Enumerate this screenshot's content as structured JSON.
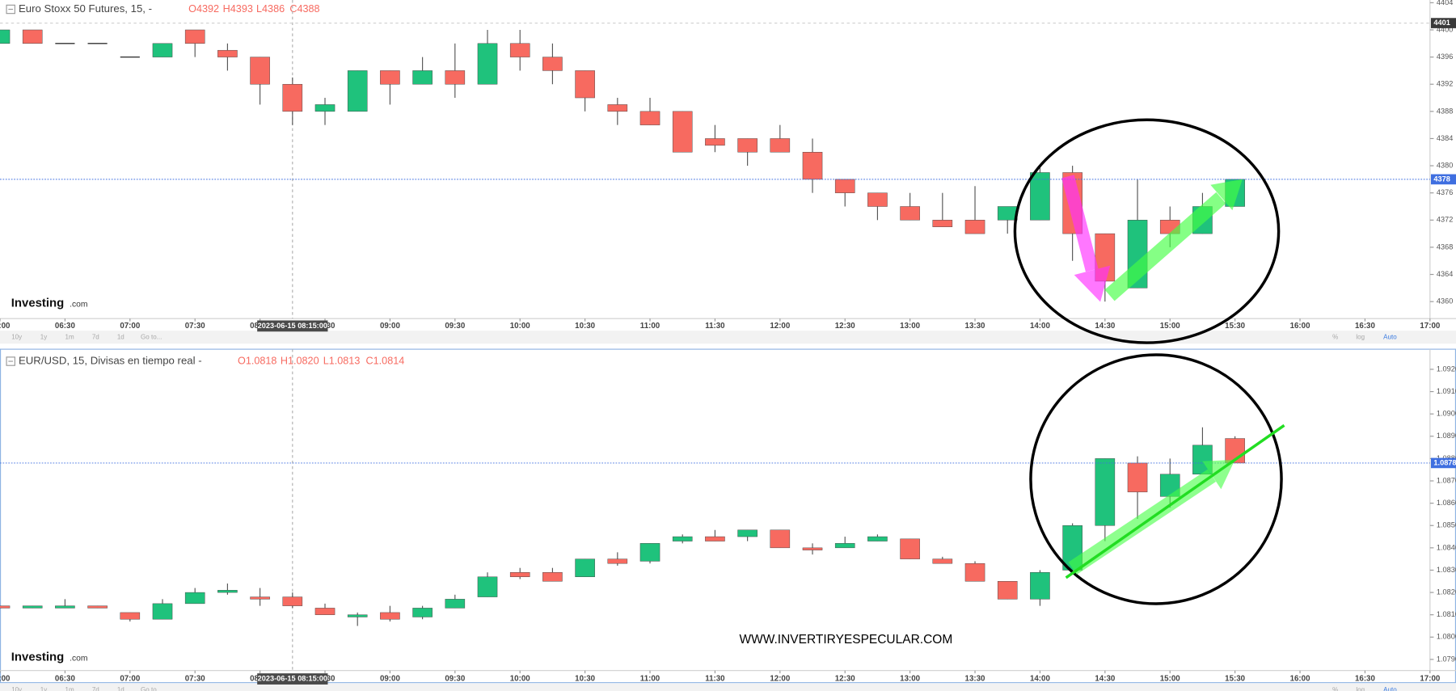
{
  "chart_data": [
    {
      "type": "candlestick",
      "title": "Euro Stoxx 50 Futures, 15, -",
      "ohlc_header": [
        "O4392",
        "H4393",
        "L4386",
        "C4388"
      ],
      "up_color": "#1fc27c",
      "down_color": "#f76a60",
      "categories": [
        "06:00",
        null,
        "06:30",
        null,
        "07:00",
        null,
        "07:30",
        null,
        "08:00",
        null,
        "08:30",
        null,
        "09:00",
        null,
        "09:30",
        null,
        "10:00",
        null,
        "10:30",
        null,
        "11:00",
        null,
        "11:30",
        null,
        "12:00",
        null,
        "12:30",
        null,
        "13:00",
        null,
        "13:30",
        null,
        "14:00",
        null,
        "14:30",
        null,
        "15:00",
        null,
        "15:30",
        null,
        "16:00",
        null,
        "16:30",
        null,
        "17:00"
      ],
      "open": [
        4398,
        4400,
        4398,
        4398,
        4396,
        4396,
        4400,
        4397,
        4396,
        4392,
        4388,
        4388,
        4394,
        4392,
        4394,
        4392,
        4398,
        4396,
        4394,
        4389,
        4388,
        4388,
        4384,
        4384,
        4384,
        4382,
        4378,
        4376,
        4374,
        4372,
        4372,
        4372,
        4372,
        4379,
        4370,
        4362,
        4372,
        4370,
        4374,
        null,
        null,
        null,
        null,
        null,
        null
      ],
      "high": [
        4400,
        4400,
        4398,
        4398,
        4396,
        4398,
        4400,
        4398,
        4396,
        4393,
        4390,
        4394,
        4394,
        4396,
        4398,
        4400,
        4400,
        4398,
        4394,
        4390,
        4390,
        4388,
        4386,
        4384,
        4386,
        4384,
        4378,
        4376,
        4376,
        4376,
        4377,
        4374,
        4380,
        4380,
        4370,
        4378,
        4374,
        4376,
        4378,
        null,
        null,
        null,
        null,
        null,
        null
      ],
      "low": [
        4398,
        4398,
        4398,
        4398,
        4396,
        4396,
        4396,
        4394,
        4389,
        4386,
        4386,
        4388,
        4389,
        4392,
        4390,
        4392,
        4394,
        4392,
        4388,
        4386,
        4386,
        4382,
        4382,
        4380,
        4382,
        4376,
        4374,
        4372,
        4372,
        4371,
        4370,
        4370,
        4372,
        4366,
        4360,
        4362,
        4368,
        4370,
        4374,
        null,
        null,
        null,
        null,
        null,
        null
      ],
      "close": [
        4400,
        4398,
        4398,
        4398,
        4396,
        4398,
        4398,
        4396,
        4392,
        4388,
        4389,
        4394,
        4392,
        4394,
        4392,
        4398,
        4396,
        4394,
        4390,
        4388,
        4386,
        4382,
        4383,
        4382,
        4382,
        4378,
        4376,
        4374,
        4372,
        4371,
        4370,
        4374,
        4379,
        4370,
        4363,
        4372,
        4370,
        4374,
        4378,
        null,
        null,
        null,
        null,
        null,
        null
      ],
      "ylim": [
        4357.5,
        4404.4
      ],
      "yticks": [
        4360,
        4364,
        4368,
        4372,
        4376,
        4380,
        4384,
        4388,
        4392,
        4396,
        4400,
        4404
      ],
      "last_price": 4378,
      "crosshair_price": 4401,
      "crosshair_time": "2023-06-15 08:15:00"
    },
    {
      "type": "candlestick",
      "title": "EUR/USD, 15, Divisas en tiempo real -",
      "ohlc_header": [
        "O1.0818",
        "H1.0820",
        "L1.0813",
        "C1.0814"
      ],
      "up_color": "#1fc27c",
      "down_color": "#f76a60",
      "categories": [
        "06:00",
        null,
        "06:30",
        null,
        "07:00",
        null,
        "07:30",
        null,
        "08:00",
        null,
        "08:30",
        null,
        "09:00",
        null,
        "09:30",
        null,
        "10:00",
        null,
        "10:30",
        null,
        "11:00",
        null,
        "11:30",
        null,
        "12:00",
        null,
        "12:30",
        null,
        "13:00",
        null,
        "13:30",
        null,
        "14:00",
        null,
        "14:30",
        null,
        "15:00",
        null,
        "15:30",
        null,
        "16:00",
        null,
        "16:30",
        null,
        "17:00"
      ],
      "open": [
        1.0814,
        1.0813,
        1.0813,
        1.0814,
        1.0811,
        1.0808,
        1.0815,
        1.082,
        1.0818,
        1.0818,
        1.0813,
        1.0809,
        1.0811,
        1.0809,
        1.0813,
        1.0818,
        1.0829,
        1.0829,
        1.0827,
        1.0835,
        1.0834,
        1.0843,
        1.0845,
        1.0845,
        1.0848,
        1.084,
        1.084,
        1.0843,
        1.0844,
        1.0835,
        1.0833,
        1.0825,
        1.0817,
        1.083,
        1.085,
        1.0878,
        1.0863,
        1.0873,
        1.0889,
        null,
        null,
        null,
        null,
        null,
        null
      ],
      "high": [
        1.0814,
        1.0814,
        1.0817,
        1.0814,
        1.0811,
        1.0817,
        1.0822,
        1.0824,
        1.0822,
        1.082,
        1.0815,
        1.0811,
        1.0814,
        1.0814,
        1.0819,
        1.0829,
        1.0831,
        1.0831,
        1.0835,
        1.0838,
        1.0842,
        1.0846,
        1.0848,
        1.0848,
        1.0848,
        1.0842,
        1.0845,
        1.0846,
        1.0844,
        1.0836,
        1.0834,
        1.0825,
        1.083,
        1.0851,
        1.088,
        1.0881,
        1.088,
        1.0894,
        1.089,
        null,
        null,
        null,
        null,
        null,
        null
      ],
      "low": [
        1.0813,
        1.0813,
        1.0813,
        1.0813,
        1.0807,
        1.0808,
        1.0815,
        1.0819,
        1.0814,
        1.0813,
        1.081,
        1.0805,
        1.0807,
        1.0808,
        1.0813,
        1.0818,
        1.0826,
        1.0825,
        1.0827,
        1.0832,
        1.0833,
        1.0842,
        1.0843,
        1.0843,
        1.084,
        1.0837,
        1.084,
        1.0843,
        1.0835,
        1.0833,
        1.0825,
        1.0817,
        1.0814,
        1.083,
        1.0843,
        1.0853,
        1.0858,
        1.0873,
        1.0878,
        null,
        null,
        null,
        null,
        null,
        null
      ],
      "close": [
        1.0813,
        1.0814,
        1.0814,
        1.0813,
        1.0808,
        1.0815,
        1.082,
        1.0821,
        1.0817,
        1.0814,
        1.081,
        1.081,
        1.0808,
        1.0813,
        1.0817,
        1.0827,
        1.0827,
        1.0825,
        1.0835,
        1.0833,
        1.0842,
        1.0845,
        1.0843,
        1.0848,
        1.084,
        1.0839,
        1.0842,
        1.0845,
        1.0835,
        1.0833,
        1.0825,
        1.0817,
        1.0829,
        1.085,
        1.088,
        1.0865,
        1.0873,
        1.0886,
        1.0878,
        null,
        null,
        null,
        null,
        null,
        null
      ],
      "ylim": [
        1.0785,
        1.0929
      ],
      "yticks": [
        {
          "value": 1.079,
          "label": "1.0790"
        },
        {
          "value": 1.08,
          "label": "1.0800"
        },
        {
          "value": 1.081,
          "label": "1.0810"
        },
        {
          "value": 1.082,
          "label": "1.0820"
        },
        {
          "value": 1.083,
          "label": "1.0830"
        },
        {
          "value": 1.084,
          "label": "1.0840"
        },
        {
          "value": 1.085,
          "label": "1.0850"
        },
        {
          "value": 1.086,
          "label": "1.0860"
        },
        {
          "value": 1.087,
          "label": "1.0870"
        },
        {
          "value": 1.088,
          "label": "1.0880"
        },
        {
          "value": 1.089,
          "label": "1.0890"
        },
        {
          "value": 1.09,
          "label": "1.0900"
        },
        {
          "value": 1.091,
          "label": "1.0910"
        },
        {
          "value": 1.092,
          "label": "1.0920"
        }
      ],
      "last_price": 1.0878,
      "crosshair_time": "2023-06-15 08:15:00"
    }
  ],
  "logo": [
    "Investing",
    ".com"
  ],
  "toolbar": {
    "ranges": [
      "10y",
      "1y",
      "1m",
      "7d",
      "1d",
      "Go to..."
    ],
    "options": [
      "%",
      "log",
      "Auto"
    ]
  },
  "watermark": "WWW.INVERTIRYESPECULAR.COM"
}
